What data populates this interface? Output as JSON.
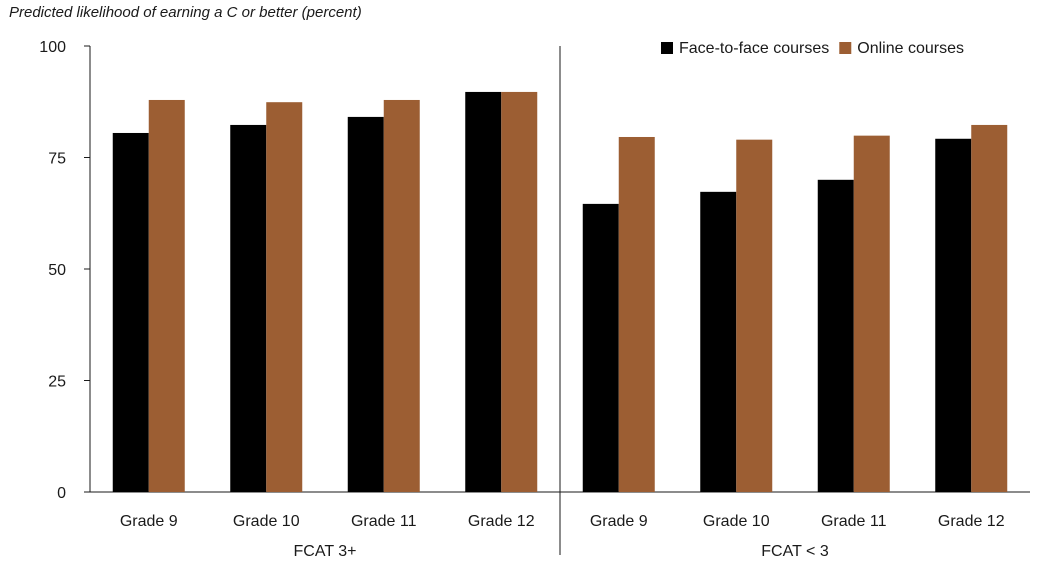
{
  "chart_data": {
    "type": "bar",
    "title": "Predicted likelihood of earning a C or better (percent)",
    "ylim": [
      0,
      100
    ],
    "yticks": [
      0,
      25,
      50,
      75,
      100
    ],
    "groups": [
      {
        "label": "FCAT 3+",
        "categories": [
          "Grade 9",
          "Grade 10",
          "Grade 11",
          "Grade 12"
        ]
      },
      {
        "label": "FCAT < 3",
        "categories": [
          "Grade 9",
          "Grade 10",
          "Grade 11",
          "Grade 12"
        ]
      }
    ],
    "series": [
      {
        "name": "Face-to-face courses",
        "color": "#000000",
        "values": [
          80.5,
          82.3,
          84.1,
          89.7,
          64.6,
          67.3,
          70.0,
          79.2
        ]
      },
      {
        "name": "Online courses",
        "color": "#9c5e33",
        "values": [
          87.9,
          87.4,
          87.9,
          89.7,
          79.6,
          79.0,
          79.9,
          82.3
        ]
      }
    ],
    "legend_position": "top-right",
    "grid": false
  }
}
